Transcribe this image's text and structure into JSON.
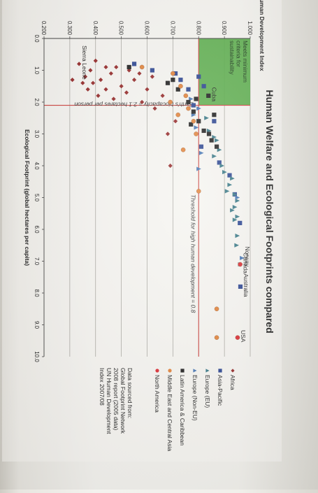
{
  "chart_data": {
    "type": "scatter",
    "title": "Human Welfare and Ecological Footprints compared",
    "xlabel": "Ecological Footprint (global hectares per capita)",
    "ylabel": "Human Development Index",
    "xlim": [
      0,
      10
    ],
    "ylim": [
      0.2,
      1.0
    ],
    "x_ticks": [
      "0.0",
      "1.0",
      "2.0",
      "3.0",
      "4.0",
      "5.0",
      "6.0",
      "7.0",
      "8.0",
      "9.0",
      "10.0"
    ],
    "y_ticks": [
      "0.200",
      "0.300",
      "0.400",
      "0.500",
      "0.600",
      "0.700",
      "0.800",
      "0.900",
      "1.000"
    ],
    "grid": true,
    "legend_position": "right",
    "hdi_threshold": 0.8,
    "biocapacity_threshold": 2.1,
    "threshold_hdi_label": "Threshold for high human development = 0.8",
    "threshold_bio_label": "Earth's biocapacity = 2.1 hectares per person",
    "box_label": "Meets minimum criteria for sustainability",
    "source_note": [
      "Data sourced from:",
      "Global Footprint Network",
      "2008 report (2005 data)",
      "UN Human Development",
      "Index 2007/08"
    ],
    "colors": {
      "Africa": "#8e1b1b",
      "Asia-Pacific": "#1f3a8a",
      "Europe (EU)": "#2b6f7e",
      "Europe (Non-EU)": "#3a6cae",
      "Latin America & Caribbean": "#111111",
      "Middle East and Central Asia": "#e07b2e",
      "North America": "#d91f26",
      "box": "#4aa53a",
      "threshold": "#c9302c"
    },
    "annotations": [
      {
        "text": "USA",
        "x": 9.4,
        "y": 0.951
      },
      {
        "text": "Australia",
        "x": 7.8,
        "y": 0.962
      },
      {
        "text": "Norway",
        "x": 6.9,
        "y": 0.968
      },
      {
        "text": "Canada",
        "x": 7.1,
        "y": 0.961
      },
      {
        "text": "Cuba",
        "x": 1.8,
        "y": 0.838
      },
      {
        "text": "Sierra Leone",
        "x": 0.8,
        "y": 0.336
      }
    ],
    "series": [
      {
        "name": "Africa",
        "marker": "diamond",
        "points": [
          [
            0.8,
            0.336
          ],
          [
            1.0,
            0.38
          ],
          [
            1.2,
            0.36
          ],
          [
            1.3,
            0.42
          ],
          [
            1.4,
            0.39
          ],
          [
            1.6,
            0.44
          ],
          [
            1.8,
            0.41
          ],
          [
            1.1,
            0.46
          ],
          [
            1.5,
            0.5
          ],
          [
            0.9,
            0.48
          ],
          [
            1.7,
            0.52
          ],
          [
            1.9,
            0.47
          ],
          [
            1.3,
            0.55
          ],
          [
            1.0,
            0.53
          ],
          [
            2.0,
            0.58
          ],
          [
            1.6,
            0.6
          ],
          [
            1.2,
            0.62
          ],
          [
            0.7,
            0.4
          ],
          [
            1.4,
            0.35
          ],
          [
            2.2,
            0.63
          ],
          [
            3.0,
            0.68
          ],
          [
            4.0,
            0.69
          ],
          [
            2.6,
            0.71
          ],
          [
            1.8,
            0.66
          ],
          [
            1.3,
            0.31
          ],
          [
            0.9,
            0.44
          ],
          [
            1.1,
            0.57
          ],
          [
            1.6,
            0.37
          ]
        ]
      },
      {
        "name": "Asia-Pacific",
        "marker": "square",
        "points": [
          [
            0.8,
            0.55
          ],
          [
            1.0,
            0.62
          ],
          [
            1.1,
            0.71
          ],
          [
            1.3,
            0.73
          ],
          [
            1.6,
            0.76
          ],
          [
            1.2,
            0.8
          ],
          [
            2.1,
            0.78
          ],
          [
            3.4,
            0.81
          ],
          [
            4.9,
            0.94
          ],
          [
            5.8,
            0.96
          ],
          [
            4.3,
            0.92
          ],
          [
            7.8,
            0.962
          ],
          [
            2.6,
            0.86
          ],
          [
            3.9,
            0.88
          ],
          [
            1.5,
            0.82
          ]
        ]
      },
      {
        "name": "Europe (EU)",
        "marker": "triangle",
        "points": [
          [
            3.2,
            0.87
          ],
          [
            3.7,
            0.86
          ],
          [
            4.2,
            0.9
          ],
          [
            4.6,
            0.92
          ],
          [
            4.9,
            0.94
          ],
          [
            5.1,
            0.95
          ],
          [
            5.3,
            0.94
          ],
          [
            5.6,
            0.95
          ],
          [
            5.7,
            0.94
          ],
          [
            4.4,
            0.93
          ],
          [
            3.5,
            0.88
          ],
          [
            2.9,
            0.84
          ],
          [
            2.5,
            0.83
          ],
          [
            3.1,
            0.86
          ],
          [
            4.0,
            0.89
          ],
          [
            6.2,
            0.95
          ],
          [
            6.5,
            0.947
          ],
          [
            7.1,
            0.961
          ],
          [
            4.8,
            0.91
          ],
          [
            5.4,
            0.93
          ]
        ]
      },
      {
        "name": "Europe (Non-EU)",
        "marker": "triangle",
        "points": [
          [
            6.9,
            0.968
          ],
          [
            5.0,
            0.95
          ],
          [
            2.2,
            0.8
          ],
          [
            3.6,
            0.81
          ],
          [
            2.8,
            0.79
          ],
          [
            4.1,
            0.8
          ],
          [
            1.9,
            0.77
          ],
          [
            2.4,
            0.78
          ]
        ]
      },
      {
        "name": "Latin America & Caribbean",
        "marker": "square",
        "points": [
          [
            1.8,
            0.838
          ],
          [
            1.3,
            0.7
          ],
          [
            1.6,
            0.72
          ],
          [
            2.0,
            0.76
          ],
          [
            2.3,
            0.78
          ],
          [
            2.6,
            0.8
          ],
          [
            2.9,
            0.82
          ],
          [
            3.0,
            0.84
          ],
          [
            3.2,
            0.85
          ],
          [
            2.4,
            0.86
          ],
          [
            1.9,
            0.79
          ],
          [
            2.7,
            0.77
          ],
          [
            1.4,
            0.68
          ],
          [
            3.4,
            0.87
          ],
          [
            0.9,
            0.53
          ]
        ]
      },
      {
        "name": "Middle East and Central Asia",
        "marker": "circle",
        "points": [
          [
            1.1,
            0.7
          ],
          [
            1.5,
            0.73
          ],
          [
            1.8,
            0.75
          ],
          [
            2.2,
            0.76
          ],
          [
            2.6,
            0.78
          ],
          [
            3.0,
            0.79
          ],
          [
            3.5,
            0.74
          ],
          [
            4.8,
            0.8
          ],
          [
            2.0,
            0.69
          ],
          [
            8.5,
            0.87
          ],
          [
            9.4,
            0.87
          ],
          [
            2.4,
            0.72
          ],
          [
            0.9,
            0.58
          ]
        ]
      },
      {
        "name": "North America",
        "marker": "circle",
        "points": [
          [
            9.4,
            0.951
          ],
          [
            7.1,
            0.961
          ]
        ]
      }
    ]
  }
}
